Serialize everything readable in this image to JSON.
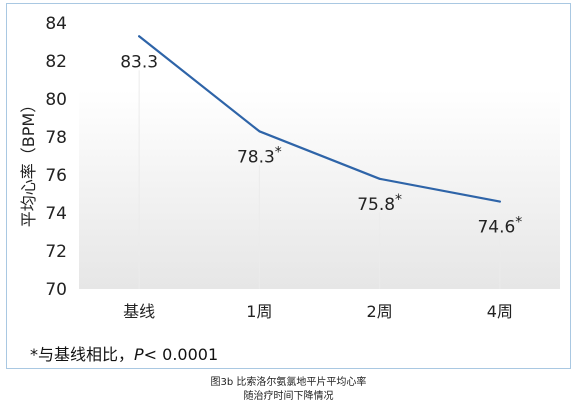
{
  "chart_data": {
    "type": "line",
    "categories": [
      "基线",
      "1周",
      "2周",
      "4周"
    ],
    "series": [
      {
        "values": [
          83.3,
          78.3,
          75.8,
          74.6
        ],
        "data_labels": [
          "83.3",
          "78.3*",
          "75.8*",
          "74.6*"
        ],
        "color": "#2e64a8"
      }
    ],
    "ylabel": "平均心率（BPM）",
    "ylim": [
      70,
      84
    ],
    "yticks": [
      70,
      72,
      74,
      76,
      78,
      80,
      82,
      84
    ],
    "grid": false
  },
  "footnote": {
    "prefix": "*与基线相比，",
    "p_symbol": "P",
    "rest": "< 0.0001"
  },
  "caption": {
    "line1": "图3b 比索洛尔氨氯地平片平均心率",
    "line2": "随治疗时间下降情况"
  },
  "colors": {
    "frame_border": "#a9c8e2",
    "plot_fill_top": "#ffffff",
    "plot_fill_bottom": "#e8e8e8",
    "line": "#2e64a8"
  }
}
